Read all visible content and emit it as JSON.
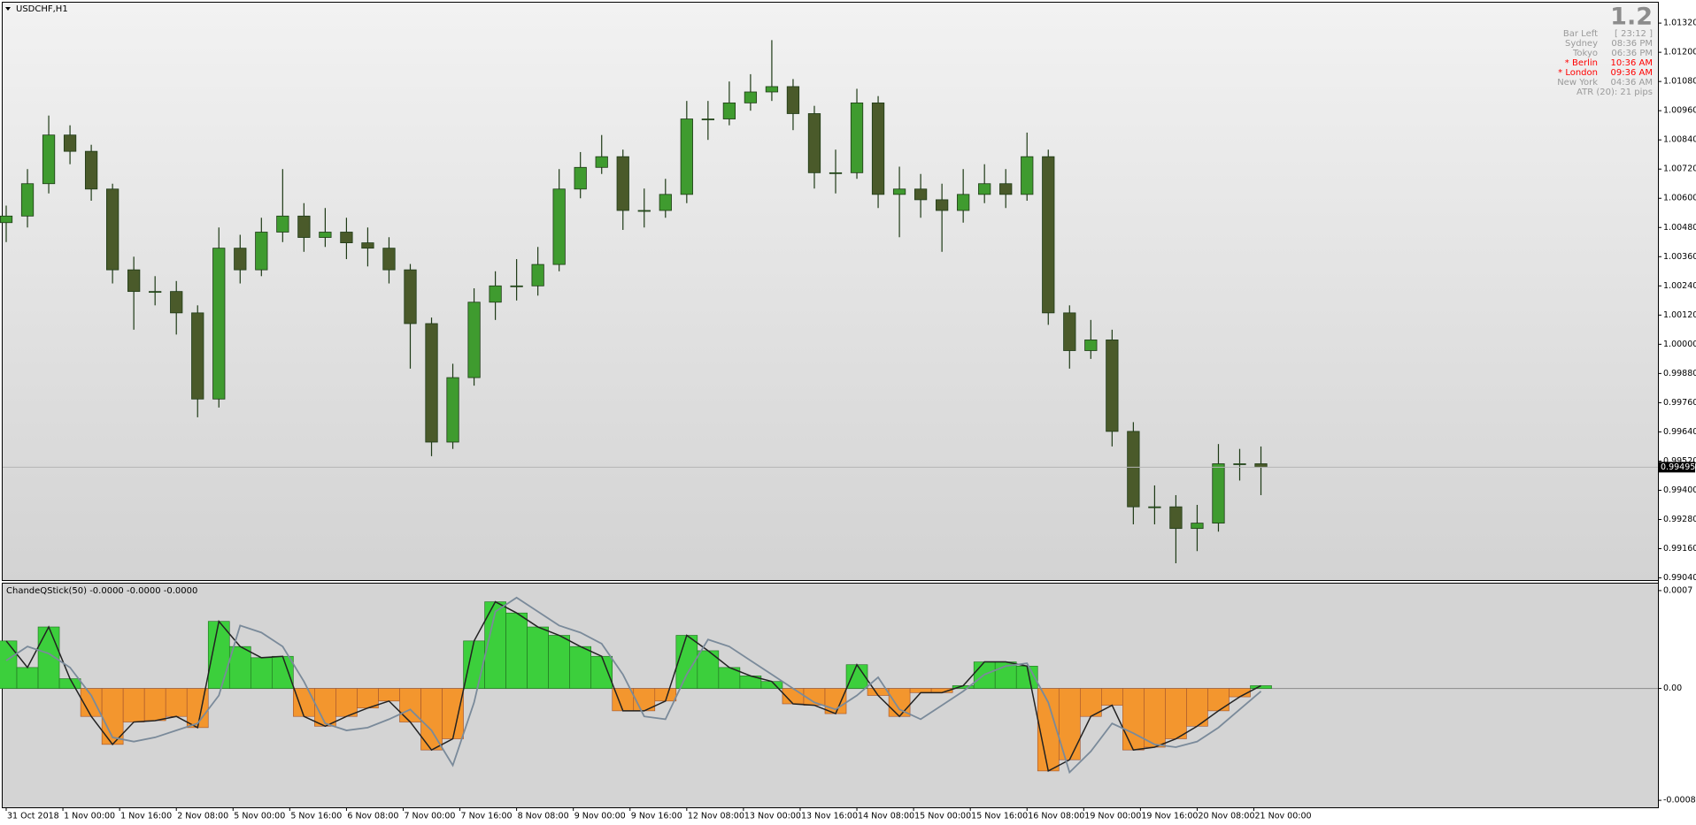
{
  "chart_data": [
    {
      "type": "candlestick",
      "title": "USDCHF,H1",
      "up_color": "#3f9b2f",
      "down_color": "#4a5a2a",
      "wick_color": "#1e3a16",
      "xlim": [
        -1,
        466
      ],
      "x": [
        0,
        6,
        12,
        18,
        24,
        30,
        36,
        42,
        48,
        54,
        60,
        66,
        72,
        78,
        84,
        90,
        96,
        102,
        108,
        114,
        120,
        126,
        132,
        138,
        144,
        150,
        156,
        162,
        168,
        174,
        180,
        186,
        192,
        198,
        204,
        210,
        216,
        222,
        228,
        234,
        240,
        246,
        252,
        258,
        264,
        270,
        276,
        282,
        288,
        294,
        300,
        306,
        312,
        318,
        324,
        330,
        336,
        342,
        348,
        354
      ],
      "open": [
        1.005,
        1.00527,
        1.0066,
        1.0086,
        1.00793,
        1.00638,
        1.00306,
        1.00217,
        1.00217,
        1.00129,
        0.99775,
        1.00395,
        1.00306,
        1.00461,
        1.00527,
        1.00439,
        1.00461,
        1.00417,
        1.00395,
        1.00306,
        1.00085,
        0.99598,
        0.99863,
        1.00173,
        1.0024,
        1.0024,
        1.00328,
        1.00638,
        1.00727,
        1.00771,
        1.0055,
        1.0055,
        1.00616,
        1.00926,
        1.00926,
        1.00992,
        1.01037,
        1.01059,
        1.00948,
        1.00705,
        1.00705,
        1.00992,
        1.00616,
        1.00638,
        1.00594,
        1.0055,
        1.00616,
        1.0066,
        1.00616,
        1.00771,
        1.00129,
        0.99974,
        1.00018,
        0.99642,
        0.99332,
        0.99332,
        0.99243,
        0.99265,
        0.99509,
        0.99509
      ],
      "high": [
        1.0057,
        1.0072,
        1.0094,
        1.009,
        1.0082,
        1.0066,
        1.0036,
        1.0028,
        1.0026,
        1.0016,
        1.0048,
        1.0045,
        1.0052,
        1.0072,
        1.0058,
        1.0056,
        1.0052,
        1.0048,
        1.0044,
        1.0033,
        1.0011,
        0.9992,
        1.0023,
        1.003,
        1.0035,
        1.004,
        1.0072,
        1.0079,
        1.0086,
        1.008,
        1.0064,
        1.0068,
        1.01,
        1.01,
        1.0108,
        1.0111,
        1.0125,
        1.0109,
        1.0098,
        1.008,
        1.0105,
        1.0102,
        1.0073,
        1.007,
        1.0066,
        1.0072,
        1.0074,
        1.0072,
        1.0087,
        1.008,
        1.0016,
        1.001,
        1.0006,
        0.9968,
        0.9942,
        0.9938,
        0.9934,
        0.9959,
        0.9957,
        0.9958
      ],
      "low": [
        1.0042,
        1.0048,
        1.0062,
        1.0074,
        1.0059,
        1.0025,
        1.0006,
        1.0016,
        1.0004,
        0.997,
        0.9974,
        1.0025,
        1.0028,
        1.0042,
        1.0038,
        1.004,
        1.0035,
        1.0032,
        1.0025,
        0.999,
        0.9954,
        0.9957,
        0.9983,
        1.001,
        1.0018,
        1.002,
        1.003,
        1.006,
        1.007,
        1.0047,
        1.0048,
        1.0052,
        1.0058,
        1.0084,
        1.009,
        1.0096,
        1.01,
        1.0088,
        1.0064,
        1.0062,
        1.0068,
        1.0056,
        1.0044,
        1.0052,
        1.0038,
        1.005,
        1.0058,
        1.0056,
        1.0059,
        1.0008,
        0.999,
        0.9994,
        0.9958,
        0.9926,
        0.9926,
        0.991,
        0.9915,
        0.9923,
        0.9944,
        0.9938
      ],
      "close": [
        1.00527,
        1.0066,
        1.0086,
        1.00793,
        1.00638,
        1.00306,
        1.00217,
        1.00217,
        1.00129,
        0.99775,
        1.00395,
        1.00306,
        1.00461,
        1.00527,
        1.00439,
        1.00461,
        1.00417,
        1.00395,
        1.00306,
        1.00085,
        0.99598,
        0.99863,
        1.00173,
        1.0024,
        1.0024,
        1.00328,
        1.00638,
        1.00727,
        1.00771,
        1.0055,
        1.0055,
        1.00616,
        1.00926,
        1.00926,
        1.00992,
        1.01037,
        1.01059,
        1.00948,
        1.00705,
        1.00705,
        1.00992,
        1.00616,
        1.00638,
        1.00594,
        1.0055,
        1.00616,
        1.0066,
        1.00616,
        1.00771,
        1.00129,
        0.99974,
        1.00018,
        0.99642,
        0.99332,
        0.99332,
        0.99243,
        0.99265,
        0.99509,
        0.99509,
        0.99495
      ],
      "ylim": [
        0.99031,
        1.01404
      ],
      "yticks": [
        {
          "value": 0.9904,
          "label": "0.99040"
        },
        {
          "value": 0.9916,
          "label": "0.99160"
        },
        {
          "value": 0.9928,
          "label": "0.99280"
        },
        {
          "value": 0.994,
          "label": "0.99400"
        },
        {
          "value": 0.9952,
          "label": "0.99520"
        },
        {
          "value": 0.9964,
          "label": "0.99640"
        },
        {
          "value": 0.9976,
          "label": "0.99760"
        },
        {
          "value": 0.9988,
          "label": "0.99880"
        },
        {
          "value": 1,
          "label": "1.00000"
        },
        {
          "value": 1.0012,
          "label": "1.00120"
        },
        {
          "value": 1.0024,
          "label": "1.00240"
        },
        {
          "value": 1.0036,
          "label": "1.00360"
        },
        {
          "value": 1.0048,
          "label": "1.00480"
        },
        {
          "value": 1.006,
          "label": "1.00600"
        },
        {
          "value": 1.0072,
          "label": "1.00720"
        },
        {
          "value": 1.0084,
          "label": "1.00840"
        },
        {
          "value": 1.0096,
          "label": "1.00960"
        },
        {
          "value": 1.0108,
          "label": "1.01080"
        },
        {
          "value": 1.012,
          "label": "1.01200"
        },
        {
          "value": 1.0132,
          "label": "1.01320"
        }
      ],
      "current_price": 0.99495,
      "info_panel": {
        "version": "1.2",
        "rows": [
          {
            "label": "Bar Left",
            "value": "[ 23:12 ]",
            "color": "#9a9a9a"
          },
          {
            "label": "Sydney",
            "value": "08:36 PM",
            "color": "#9a9a9a"
          },
          {
            "label": "Tokyo",
            "value": "06:36 PM",
            "color": "#9a9a9a"
          },
          {
            "label": "* Berlin",
            "value": "10:36 AM",
            "color": "#ff0000"
          },
          {
            "label": "* London",
            "value": "09:36 AM",
            "color": "#ff0000"
          },
          {
            "label": "New York",
            "value": "04:36 AM",
            "color": "#9a9a9a"
          }
        ],
        "atr": "ATR (20): 21 pips"
      }
    },
    {
      "type": "histogram",
      "title": "ChandeQStick(50) -0.0000 -0.0000 -0.0000",
      "pos_color": "#3ccf3c",
      "neg_color": "#f3962e",
      "outline_color": "#222222",
      "xlim": [
        -1,
        466
      ],
      "x": [
        0,
        6,
        12,
        18,
        24,
        30,
        36,
        42,
        48,
        54,
        60,
        66,
        72,
        78,
        84,
        90,
        96,
        102,
        108,
        114,
        120,
        126,
        132,
        138,
        144,
        150,
        156,
        162,
        168,
        174,
        180,
        186,
        192,
        198,
        204,
        210,
        216,
        222,
        228,
        234,
        240,
        246,
        252,
        258,
        264,
        270,
        276,
        282,
        288,
        294,
        300,
        306,
        312,
        318,
        324,
        330,
        336,
        342,
        348,
        354
      ],
      "values": [
        0.00034,
        0.00015,
        0.00044,
        7e-05,
        -0.0002,
        -0.0004,
        -0.00024,
        -0.00023,
        -0.0002,
        -0.00028,
        0.00048,
        0.0003,
        0.00022,
        0.00023,
        -0.0002,
        -0.00027,
        -0.0002,
        -0.00014,
        -9e-05,
        -0.00024,
        -0.00044,
        -0.00036,
        0.00034,
        0.00062,
        0.00054,
        0.00044,
        0.00038,
        0.0003,
        0.00023,
        -0.00016,
        -0.00016,
        -9e-05,
        0.00038,
        0.00027,
        0.00015,
        9e-05,
        5e-05,
        -0.00011,
        -0.00012,
        -0.00018,
        0.00017,
        -5e-05,
        -0.0002,
        -3e-05,
        -3e-05,
        2e-05,
        0.00019,
        0.00019,
        0.00016,
        -0.00059,
        -0.00051,
        -0.0002,
        -0.00012,
        -0.00044,
        -0.00042,
        -0.00036,
        -0.00027,
        -0.00016,
        -6e-05,
        2e-05
      ],
      "series": [
        {
          "color": "#7a8a9a",
          "values": [
            0.0002,
            0.0003,
            0.00025,
            0.00015,
            -5e-05,
            -0.00035,
            -0.00038,
            -0.00035,
            -0.0003,
            -0.00025,
            -5e-05,
            0.00045,
            0.0004,
            0.0003,
            5e-05,
            -0.00025,
            -0.0003,
            -0.00028,
            -0.00022,
            -0.00015,
            -0.0003,
            -0.00055,
            -0.0001,
            0.00055,
            0.00065,
            0.00055,
            0.00045,
            0.0004,
            0.00032,
            0.0001,
            -0.0002,
            -0.00022,
            0.0001,
            0.00035,
            0.0003,
            0.0002,
            0.0001,
            0,
            -0.0001,
            -0.00015,
            -5e-05,
            8e-05,
            -0.00015,
            -0.00022,
            -0.00012,
            -2e-05,
            0.0001,
            0.00016,
            0.00018,
            -0.0001,
            -0.0006,
            -0.00045,
            -0.00025,
            -0.00032,
            -0.0004,
            -0.00042,
            -0.00038,
            -0.00028,
            -0.00015,
            -2e-05
          ]
        }
      ],
      "ylim": [
        -0.00085,
        0.00075
      ],
      "yticks": [
        0.0007,
        {
          "value": 0,
          "label": "0.00"
        },
        -0.0008
      ],
      "xticks": [
        {
          "value": 0,
          "label": "31 Oct 2018"
        },
        {
          "value": 16,
          "label": "1 Nov 00:00"
        },
        {
          "value": 32,
          "label": "1 Nov 16:00"
        },
        {
          "value": 48,
          "label": "2 Nov 08:00"
        },
        {
          "value": 64,
          "label": "5 Nov 00:00"
        },
        {
          "value": 80,
          "label": "5 Nov 16:00"
        },
        {
          "value": 96,
          "label": "6 Nov 08:00"
        },
        {
          "value": 112,
          "label": "7 Nov 00:00"
        },
        {
          "value": 128,
          "label": "7 Nov 16:00"
        },
        {
          "value": 144,
          "label": "8 Nov 08:00"
        },
        {
          "value": 160,
          "label": "9 Nov 00:00"
        },
        {
          "value": 176,
          "label": "9 Nov 16:00"
        },
        {
          "value": 192,
          "label": "12 Nov 08:00"
        },
        {
          "value": 208,
          "label": "13 Nov 00:00"
        },
        {
          "value": 224,
          "label": "13 Nov 16:00"
        },
        {
          "value": 240,
          "label": "14 Nov 08:00"
        },
        {
          "value": 256,
          "label": "15 Nov 00:00"
        },
        {
          "value": 272,
          "label": "15 Nov 16:00"
        },
        {
          "value": 288,
          "label": "16 Nov 08:00"
        },
        {
          "value": 304,
          "label": "19 Nov 00:00"
        },
        {
          "value": 320,
          "label": "19 Nov 16:00"
        },
        {
          "value": 336,
          "label": "20 Nov 08:00"
        },
        {
          "value": 352,
          "label": "21 Nov 00:00"
        }
      ]
    }
  ]
}
